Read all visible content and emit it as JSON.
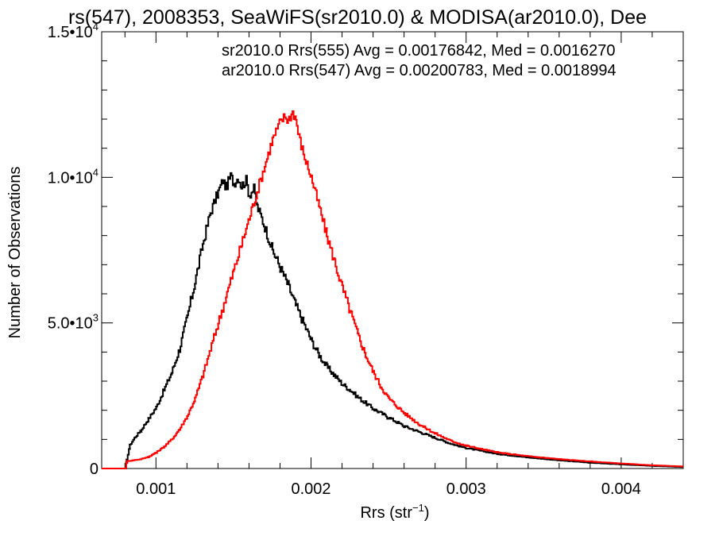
{
  "chart_data": {
    "type": "line",
    "title": "rs(547), 2008353, SeaWiFS(sr2010.0) & MODISA(ar2010.0), Dee",
    "xlabel": "Rrs (str",
    "xlabel_sup": "−1",
    "xlabel_close": ")",
    "ylabel": "Number of Observations",
    "xlim": [
      0.00065,
      0.0044
    ],
    "ylim": [
      0,
      15000
    ],
    "x_ticks": [
      0.001,
      0.002,
      0.003,
      0.004
    ],
    "x_tick_labels": [
      "0.001",
      "0.002",
      "0.003",
      "0.004"
    ],
    "y_ticks": [
      0,
      5000,
      10000,
      15000
    ],
    "y_tick_labels": [
      {
        "mant": "0",
        "exp": ""
      },
      {
        "mant": "5.0•10",
        "exp": "3"
      },
      {
        "mant": "1.0•10",
        "exp": "4"
      },
      {
        "mant": "1.5•10",
        "exp": "4"
      }
    ],
    "legend_position": "top-right",
    "grid": false,
    "series": [
      {
        "name": "sr2010.0 Rrs(555) Avg = 0.00176842, Med = 0.0016270",
        "color": "#000000",
        "points": [
          [
            0.00065,
            0
          ],
          [
            0.0008,
            0
          ],
          [
            0.00081,
            300
          ],
          [
            0.00083,
            800
          ],
          [
            0.00086,
            1050
          ],
          [
            0.0009,
            1300
          ],
          [
            0.00095,
            1700
          ],
          [
            0.001,
            2100
          ],
          [
            0.00105,
            2700
          ],
          [
            0.0011,
            3300
          ],
          [
            0.00115,
            4100
          ],
          [
            0.0012,
            5200
          ],
          [
            0.00125,
            6400
          ],
          [
            0.0013,
            7700
          ],
          [
            0.00135,
            8800
          ],
          [
            0.0014,
            9500
          ],
          [
            0.00143,
            9900
          ],
          [
            0.00145,
            9650
          ],
          [
            0.00148,
            10050
          ],
          [
            0.0015,
            9800
          ],
          [
            0.00153,
            10000
          ],
          [
            0.00155,
            9700
          ],
          [
            0.00158,
            9900
          ],
          [
            0.0016,
            9400
          ],
          [
            0.00163,
            9600
          ],
          [
            0.00165,
            9000
          ],
          [
            0.00168,
            8600
          ],
          [
            0.0017,
            8300
          ],
          [
            0.00175,
            7500
          ],
          [
            0.0018,
            6900
          ],
          [
            0.00185,
            6300
          ],
          [
            0.0019,
            5600
          ],
          [
            0.00195,
            5000
          ],
          [
            0.002,
            4400
          ],
          [
            0.00205,
            3900
          ],
          [
            0.0021,
            3500
          ],
          [
            0.00215,
            3200
          ],
          [
            0.0022,
            2900
          ],
          [
            0.00225,
            2700
          ],
          [
            0.0023,
            2450
          ],
          [
            0.00235,
            2250
          ],
          [
            0.0024,
            2050
          ],
          [
            0.0025,
            1750
          ],
          [
            0.0026,
            1450
          ],
          [
            0.0027,
            1250
          ],
          [
            0.0028,
            1050
          ],
          [
            0.0029,
            850
          ],
          [
            0.003,
            700
          ],
          [
            0.0032,
            500
          ],
          [
            0.0034,
            380
          ],
          [
            0.0036,
            280
          ],
          [
            0.0038,
            200
          ],
          [
            0.004,
            140
          ],
          [
            0.0042,
            90
          ],
          [
            0.0044,
            50
          ]
        ]
      },
      {
        "name": "ar2010.0 Rrs(547) Avg = 0.00200783, Med = 0.0018994",
        "color": "#ff0000",
        "points": [
          [
            0.00065,
            0
          ],
          [
            0.0008,
            0
          ],
          [
            0.00081,
            250
          ],
          [
            0.00085,
            280
          ],
          [
            0.0009,
            320
          ],
          [
            0.00095,
            400
          ],
          [
            0.001,
            550
          ],
          [
            0.00105,
            750
          ],
          [
            0.0011,
            1000
          ],
          [
            0.00115,
            1350
          ],
          [
            0.0012,
            1800
          ],
          [
            0.00125,
            2400
          ],
          [
            0.0013,
            3200
          ],
          [
            0.00135,
            4100
          ],
          [
            0.0014,
            5000
          ],
          [
            0.00145,
            5900
          ],
          [
            0.0015,
            6800
          ],
          [
            0.00155,
            7700
          ],
          [
            0.0016,
            8600
          ],
          [
            0.00165,
            9500
          ],
          [
            0.0017,
            10400
          ],
          [
            0.00175,
            11300
          ],
          [
            0.0018,
            11900
          ],
          [
            0.00183,
            12100
          ],
          [
            0.00185,
            11950
          ],
          [
            0.00188,
            12250
          ],
          [
            0.0019,
            12000
          ],
          [
            0.00192,
            11400
          ],
          [
            0.00195,
            10800
          ],
          [
            0.002,
            10000
          ],
          [
            0.00205,
            9000
          ],
          [
            0.0021,
            8000
          ],
          [
            0.00215,
            7100
          ],
          [
            0.0022,
            6200
          ],
          [
            0.00225,
            5400
          ],
          [
            0.0023,
            4600
          ],
          [
            0.00235,
            3900
          ],
          [
            0.0024,
            3300
          ],
          [
            0.00245,
            2800
          ],
          [
            0.0025,
            2400
          ],
          [
            0.0026,
            1900
          ],
          [
            0.0027,
            1500
          ],
          [
            0.0028,
            1200
          ],
          [
            0.0029,
            950
          ],
          [
            0.003,
            780
          ],
          [
            0.0032,
            550
          ],
          [
            0.0034,
            420
          ],
          [
            0.0036,
            320
          ],
          [
            0.0038,
            240
          ],
          [
            0.004,
            170
          ],
          [
            0.0042,
            110
          ],
          [
            0.0044,
            70
          ]
        ]
      }
    ]
  }
}
